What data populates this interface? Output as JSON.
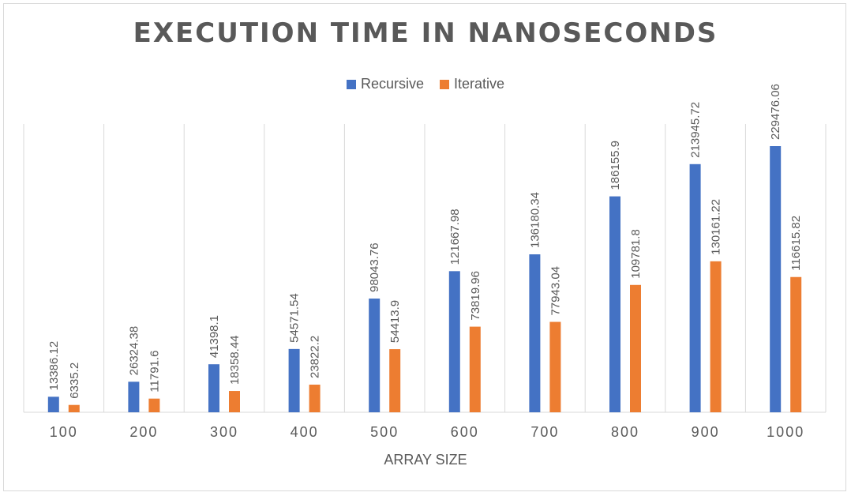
{
  "chart_data": {
    "type": "bar",
    "title": "EXECUTION TIME IN NANOSECONDS",
    "xlabel": "ARRAY SIZE",
    "ylabel": "",
    "categories": [
      "100",
      "200",
      "300",
      "400",
      "500",
      "600",
      "700",
      "800",
      "900",
      "1000"
    ],
    "series": [
      {
        "name": "Recursive",
        "color": "#4472c4",
        "values": [
          13386.12,
          26324.38,
          41398.1,
          54571.54,
          98043.76,
          121667.98,
          136180.34,
          186155.9,
          213945.72,
          229476.06
        ],
        "labels": [
          "13386.12",
          "26324.38",
          "41398.1",
          "54571.54",
          "98043.76",
          "121667.98",
          "136180.34",
          "186155.9",
          "213945.72",
          "229476.06"
        ]
      },
      {
        "name": "Iterative",
        "color": "#ed7d31",
        "values": [
          6335.2,
          11791.6,
          18358.44,
          23822.2,
          54413.9,
          73819.96,
          77943.04,
          109781.8,
          130161.22,
          116615.82
        ],
        "labels": [
          "6335.2",
          "11791.6",
          "18358.44",
          "23822.2",
          "54413.9",
          "73819.96",
          "77943.04",
          "109781.8",
          "130161.22",
          "116615.82"
        ]
      }
    ],
    "ylim": [
      0,
      250000
    ],
    "gridlines": "vertical",
    "legend": "top-center"
  }
}
